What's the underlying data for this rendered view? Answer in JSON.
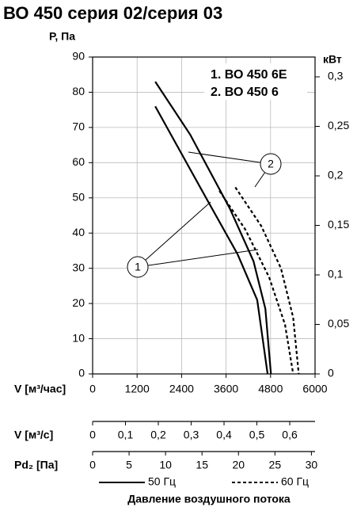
{
  "chart_data": {
    "type": "line",
    "title": "ВО 450 серия 02/серия 03",
    "y_label": "Р, Па",
    "y2_label": "кВт",
    "x_label": "V [м³/час]",
    "xlim": [
      0,
      6000
    ],
    "xticks": [
      0,
      1200,
      2400,
      3600,
      4800,
      6000
    ],
    "ylim": [
      0,
      90
    ],
    "yticks": [
      0,
      10,
      20,
      30,
      40,
      50,
      60,
      70,
      80,
      90
    ],
    "y2lim": [
      0,
      0.32
    ],
    "y2ticks": [
      {
        "value": 0,
        "label": "0"
      },
      {
        "value": 0.05,
        "label": "0,05"
      },
      {
        "value": 0.1,
        "label": "0,1"
      },
      {
        "value": 0.15,
        "label": "0,15"
      },
      {
        "value": 0.2,
        "label": "0,2"
      },
      {
        "value": 0.25,
        "label": "0,25"
      },
      {
        "value": 0.3,
        "label": "0,3"
      }
    ],
    "grid": true,
    "series": [
      {
        "color": "#000000",
        "dashed": false,
        "x": [
          1690,
          2630,
          3700,
          4340,
          4660,
          4810
        ],
        "values": [
          83,
          68,
          47,
          32,
          18.5,
          0
        ]
      },
      {
        "color": "#000000",
        "dashed": false,
        "x": [
          1690,
          3060,
          3910,
          4440,
          4720
        ],
        "values": [
          76,
          50,
          34,
          21,
          0
        ]
      },
      {
        "color": "#000000",
        "dashed": true,
        "x": [
          3420,
          4120,
          4760,
          5190,
          5410
        ],
        "values": [
          52,
          41,
          27.5,
          14,
          0
        ]
      },
      {
        "color": "#000000",
        "dashed": true,
        "x": [
          3850,
          4550,
          5080,
          5410,
          5560
        ],
        "values": [
          53,
          42,
          30,
          16,
          0
        ]
      }
    ],
    "model_labels": [
      "1. ВО 450 6Е",
      "2. ВО 450 6"
    ],
    "callouts": [
      "1",
      "2"
    ],
    "secondary_axes": [
      {
        "label": "V [м³/с]",
        "xlim": [
          0,
          0.677
        ],
        "xticks": [
          {
            "value": 0,
            "label": "0"
          },
          {
            "value": 0.1,
            "label": "0,1"
          },
          {
            "value": 0.2,
            "label": "0,2"
          },
          {
            "value": 0.3,
            "label": "0,3"
          },
          {
            "value": 0.4,
            "label": "0,4"
          },
          {
            "value": 0.5,
            "label": "0,5"
          },
          {
            "value": 0.6,
            "label": "0,6"
          }
        ]
      },
      {
        "label": "Pd₂ [Па]",
        "xlim": [
          0,
          30.5
        ],
        "xticks": [
          0,
          5,
          10,
          15,
          20,
          25,
          30
        ]
      }
    ],
    "legend": [
      {
        "label": "50 Гц",
        "dashed": false
      },
      {
        "label": "60 Гц",
        "dashed": true
      }
    ],
    "caption": "Давление воздушного потока"
  }
}
